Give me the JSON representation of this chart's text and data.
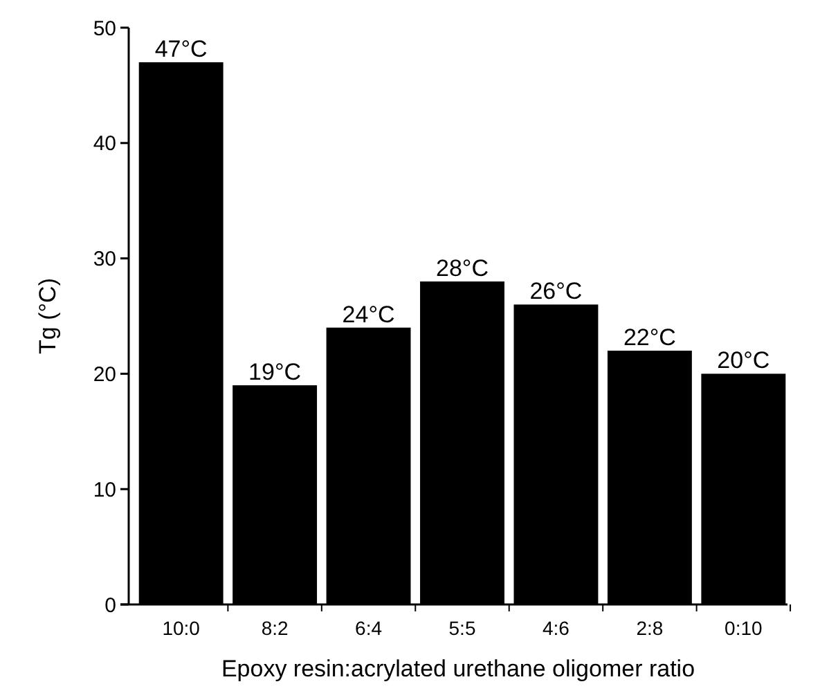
{
  "chart_data": {
    "type": "bar",
    "xlabel": "Epoxy resin:acrylated urethane oligomer ratio",
    "ylabel": "Tg (°C)",
    "categories": [
      "10:0",
      "8:2",
      "6:4",
      "5:5",
      "4:6",
      "2:8",
      "0:10"
    ],
    "values": [
      47,
      19,
      24,
      28,
      26,
      22,
      20
    ],
    "value_labels": [
      "47°C",
      "19°C",
      "24°C",
      "28°C",
      "26°C",
      "22°C",
      "20°C"
    ],
    "color": "#000000",
    "ylim": [
      0,
      50
    ],
    "yticks": [
      0,
      10,
      20,
      30,
      40,
      50
    ],
    "grid": false
  }
}
